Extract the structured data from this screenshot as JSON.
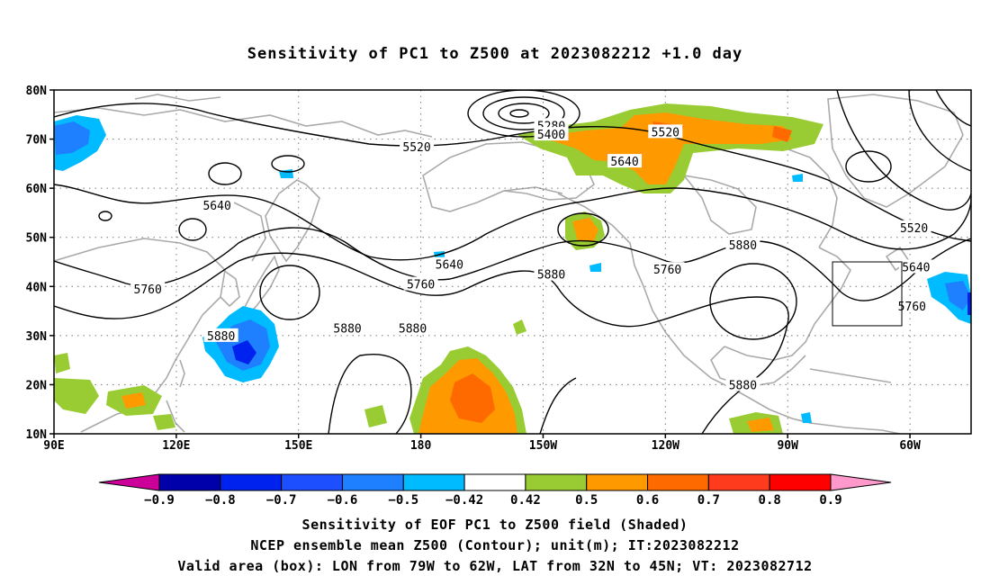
{
  "title": "Sensitivity of PC1 to Z500 at 2023082212 +1.0 day",
  "map": {
    "lat_labels": [
      "80N",
      "70N",
      "60N",
      "50N",
      "40N",
      "30N",
      "20N",
      "10N"
    ],
    "lon_labels": [
      "90E",
      "120E",
      "150E",
      "180",
      "150W",
      "120W",
      "90W",
      "60W"
    ],
    "lon_range": [
      90,
      315
    ],
    "lat_range": [
      10,
      80
    ],
    "valid_box": {
      "lon": [
        -79,
        -62
      ],
      "lat": [
        32,
        45
      ]
    },
    "contour_labels": [
      {
        "text": "5280",
        "lon": 212,
        "lat": 72.8
      },
      {
        "text": "5400",
        "lon": 212,
        "lat": 71.0
      },
      {
        "text": "5520",
        "lon": 179,
        "lat": 68.5
      },
      {
        "text": "5520",
        "lon": 240,
        "lat": 71.5
      },
      {
        "text": "5640",
        "lon": 230,
        "lat": 65.5
      },
      {
        "text": "5640",
        "lon": 130,
        "lat": 56.5
      },
      {
        "text": "5640",
        "lon": 187,
        "lat": 44.5
      },
      {
        "text": "5760",
        "lon": 113,
        "lat": 39.5
      },
      {
        "text": "5760",
        "lon": 180,
        "lat": 40.5
      },
      {
        "text": "5760",
        "lon": 240.5,
        "lat": 43.5
      },
      {
        "text": "5880",
        "lon": 212,
        "lat": 42.5
      },
      {
        "text": "5880",
        "lon": 162,
        "lat": 31.5
      },
      {
        "text": "5880",
        "lon": 178,
        "lat": 31.5
      },
      {
        "text": "5880",
        "lon": 131,
        "lat": 30.0
      },
      {
        "text": "5880",
        "lon": 259,
        "lat": 48.5
      },
      {
        "text": "5880",
        "lon": 259,
        "lat": 20.0
      },
      {
        "text": "5520",
        "lon": 301,
        "lat": 52.0
      },
      {
        "text": "5640",
        "lon": 301.5,
        "lat": 44.0
      },
      {
        "text": "5760",
        "lon": 300.5,
        "lat": 36.0
      }
    ]
  },
  "colorbar": {
    "colors": [
      "#cc0099",
      "#0000aa",
      "#0022ee",
      "#1e4fff",
      "#1e7fff",
      "#00bbff",
      "#ffffff",
      "#99cc33",
      "#ff9900",
      "#ff6a00",
      "#ff3b1e",
      "#ff0000",
      "#ff99cc"
    ],
    "labels": [
      "-0.9",
      "-0.8",
      "-0.7",
      "-0.6",
      "-0.5",
      "-0.42",
      "0.42",
      "0.5",
      "0.6",
      "0.7",
      "0.8",
      "0.9"
    ]
  },
  "footer": {
    "line1": "Sensitivity of EOF PC1 to Z500 field (Shaded)",
    "line2": "NCEP ensemble mean Z500 (Contour); unit(m); IT:2023082212",
    "line3": "Valid area (box): LON from 79W to 62W, LAT from 32N to 45N; VT: 2023082712"
  }
}
